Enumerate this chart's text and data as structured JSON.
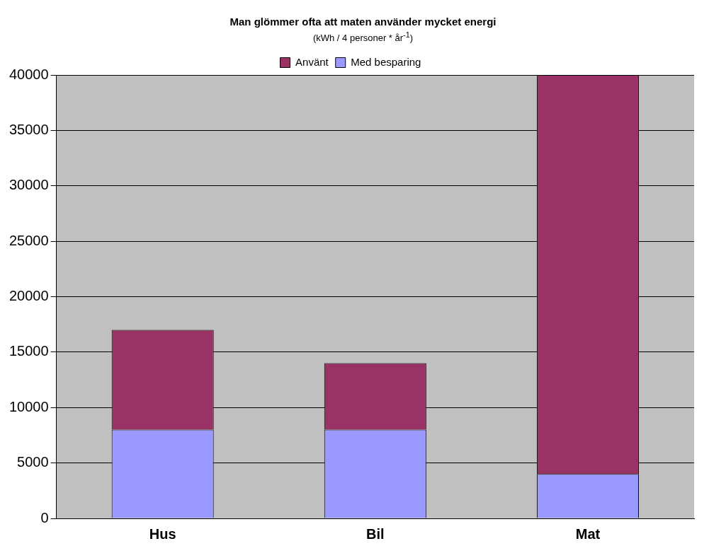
{
  "chart_data": {
    "type": "bar",
    "title": "Man glömmer ofta att maten använder mycket energi",
    "subtitle": "(kWh / 4 personer * år$^{-1}$)",
    "categories": [
      "Hus",
      "Bil",
      "Mat"
    ],
    "stacked": true,
    "series": [
      {
        "name": "Med besparing",
        "color": "#9999ff",
        "values": [
          8000,
          8000,
          4000
        ]
      },
      {
        "name": "Använt",
        "color": "#993366",
        "values": [
          9000,
          6000,
          36000
        ]
      }
    ],
    "ylim": [
      0,
      40000
    ],
    "yticks": [
      0,
      5000,
      10000,
      15000,
      20000,
      25000,
      30000,
      35000,
      40000
    ],
    "grid": "y",
    "legend": "top"
  }
}
